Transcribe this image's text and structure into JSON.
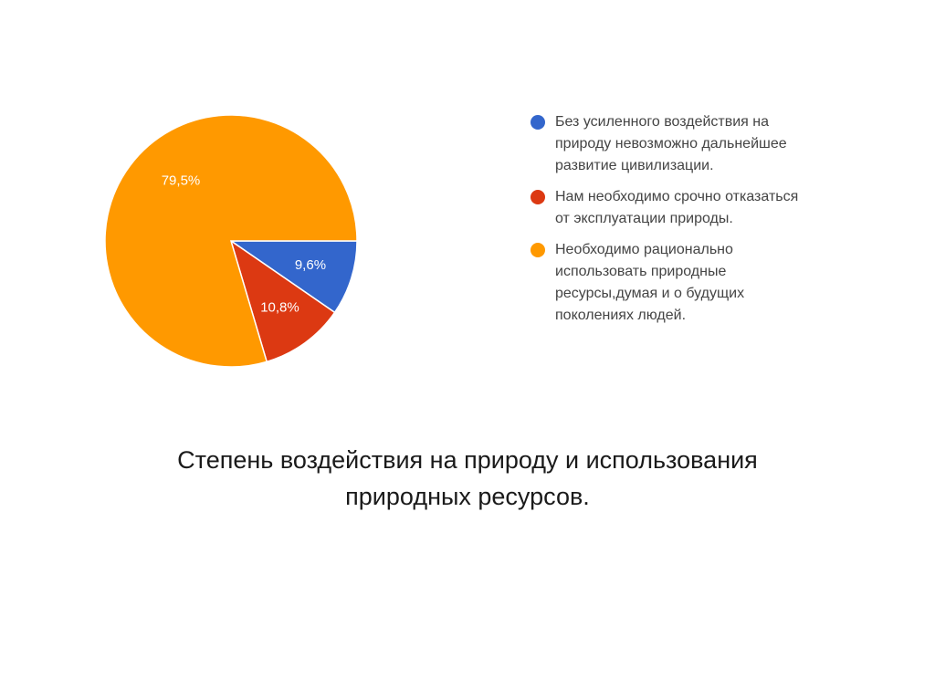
{
  "chart_data": {
    "type": "pie",
    "categories": [
      "Без усиленного воздействия на\nприроду невозможно дальнейшее\nразвитие цивилизации.",
      "Нам необходимо срочно отказаться\nот эксплуатации природы.",
      "Необходимо рационально\nиспользовать природные\nресурсы,думая и о будущих\nпоколениях людей."
    ],
    "values": [
      9.6,
      10.8,
      79.5
    ],
    "data_labels": [
      "9,6%",
      "10,8%",
      "79,5%"
    ],
    "colors": [
      "#3366cc",
      "#dc3912",
      "#ff9900"
    ],
    "legend_position": "right",
    "title": ""
  },
  "caption": "Степень воздействия на природу и использования\nприродных ресурсов."
}
